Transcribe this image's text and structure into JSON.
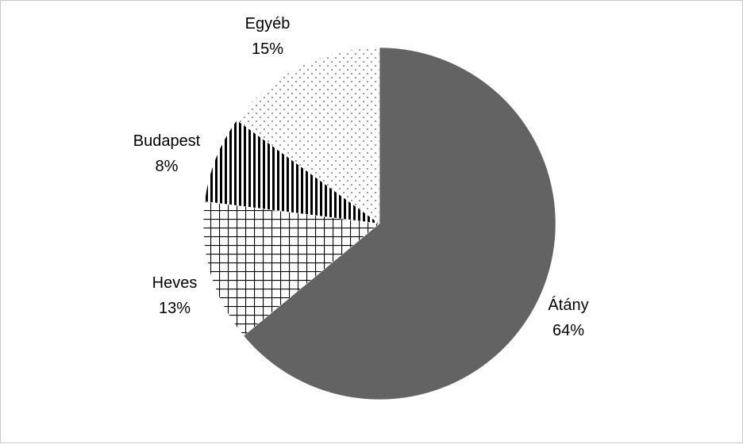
{
  "chart_data": {
    "type": "pie",
    "title": "",
    "start": "12 o'clock",
    "direction": "clockwise",
    "legend": "none",
    "slices": [
      {
        "label": "Átány",
        "value": 64,
        "percent_label": "64%",
        "fill": "solid",
        "color": "#636363"
      },
      {
        "label": "Heves",
        "value": 13,
        "percent_label": "13%",
        "fill": "grid",
        "color": "#000000"
      },
      {
        "label": "Budapest",
        "value": 8,
        "percent_label": "8%",
        "fill": "vertical-stripes",
        "color": "#000000"
      },
      {
        "label": "Egyéb",
        "value": 15,
        "percent_label": "15%",
        "fill": "dots",
        "color": "#000000"
      }
    ]
  }
}
